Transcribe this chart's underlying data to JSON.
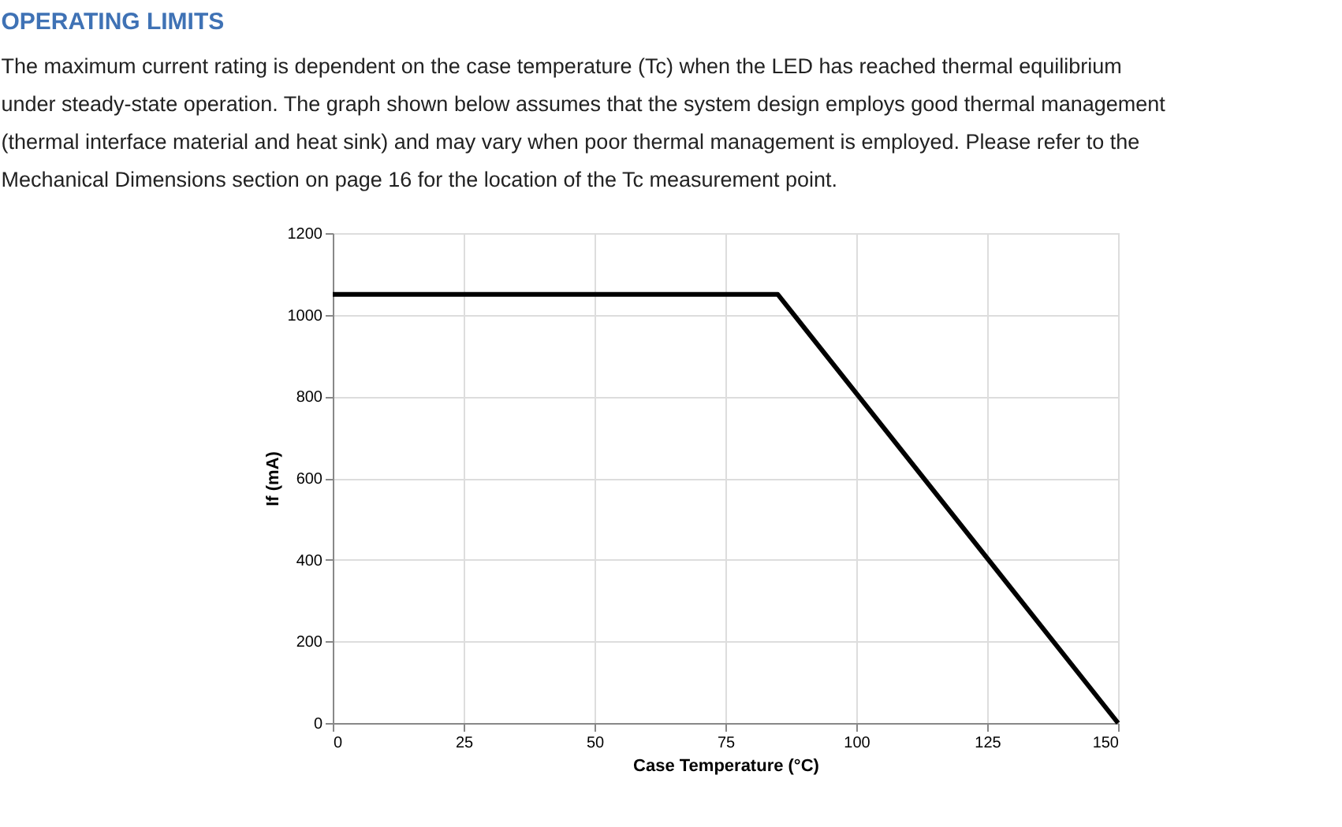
{
  "chart_data": {
    "type": "line",
    "title": "OPERATING LIMITS",
    "subtitle": "The maximum current rating is dependent on the case temperature (Tc) when the LED has reached thermal equilibrium under steady-state operation. The graph shown below assumes that the system design employs good thermal management (thermal interface material and heat sink) and may vary when poor thermal management is employed. Please refer to the Mechanical Dimensions section on page 16 for the location of the Tc measurement point.",
    "xlabel": "Case Temperature (°C)",
    "ylabel": "If (mA)",
    "x": [
      0,
      85,
      150
    ],
    "series": [
      {
        "color": "#000000",
        "values": [
          1050,
          1050,
          0
        ]
      }
    ],
    "xlim": [
      0,
      150
    ],
    "xticks": [
      0,
      25,
      50,
      75,
      100,
      125,
      150
    ],
    "ylim": [
      0,
      1200
    ],
    "yticks": [
      0,
      200,
      400,
      600,
      800,
      1000,
      1200
    ],
    "grid": true,
    "legend": false,
    "marker": "none",
    "line_style": "solid"
  }
}
